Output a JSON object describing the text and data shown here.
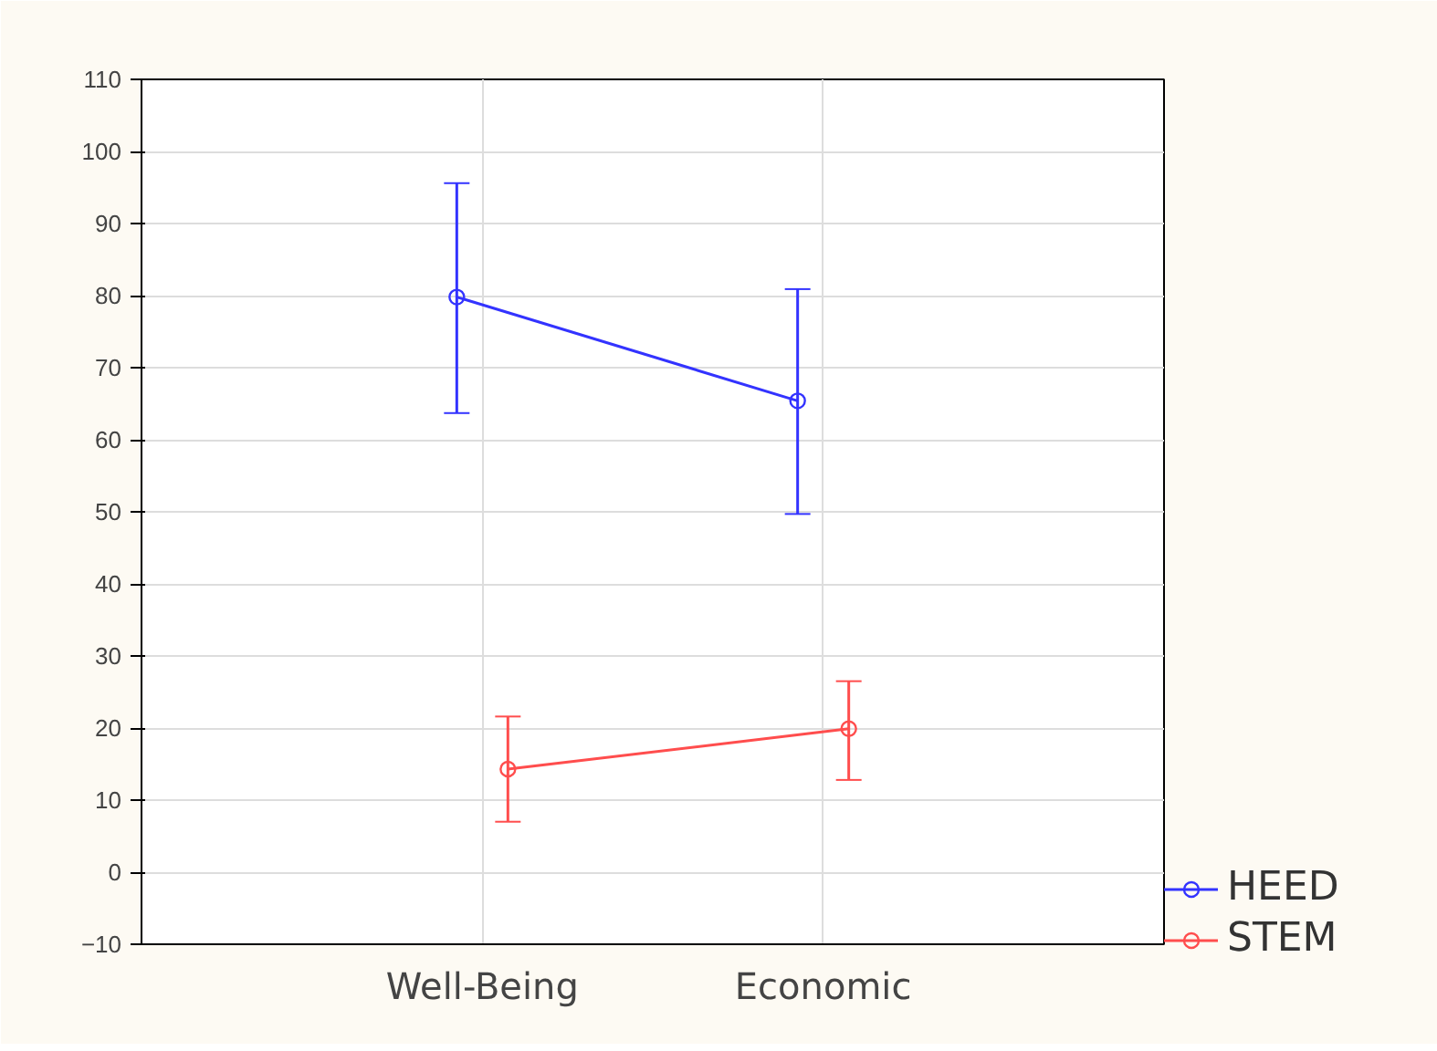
{
  "chart_data": {
    "type": "line",
    "categories": [
      "Well-Being",
      "Economic"
    ],
    "series": [
      {
        "name": "HEED",
        "color": "#3333ff",
        "values": [
          79.8,
          65.4
        ],
        "errors": [
          [
            63.7,
            95.6
          ],
          [
            49.7,
            80.9
          ]
        ]
      },
      {
        "name": "STEM",
        "color": "#ff4d4d",
        "values": [
          14.3,
          19.9
        ],
        "errors": [
          [
            7.0,
            21.6
          ],
          [
            12.8,
            26.5
          ]
        ]
      }
    ],
    "ylim": [
      -10,
      110
    ],
    "yticks": [
      -10,
      0,
      10,
      20,
      30,
      40,
      50,
      60,
      70,
      80,
      90,
      100,
      110
    ],
    "grid": true,
    "legend": "bottom right",
    "marker": "circle",
    "line_style": "solid"
  }
}
